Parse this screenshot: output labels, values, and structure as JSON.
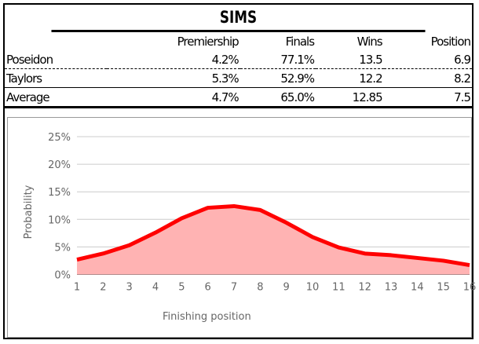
{
  "title": "SIMS",
  "table": {
    "headers": [
      "",
      "Premiership",
      "Finals",
      "Wins",
      "Position"
    ],
    "rows": [
      [
        "Poseidon",
        "4.2%",
        "77.1%",
        "13.5",
        "6.9"
      ],
      [
        "Taylors",
        "5.3%",
        "52.9%",
        "12.2",
        "8.2"
      ],
      [
        "Average",
        "4.7%",
        "65.0%",
        "12.85",
        "7.5"
      ]
    ]
  },
  "chart_data": {
    "type": "area",
    "xlabel": "Finishing position",
    "ylabel": "Probability",
    "x": [
      1,
      2,
      3,
      4,
      5,
      6,
      7,
      8,
      9,
      10,
      11,
      12,
      13,
      14,
      15,
      16
    ],
    "values": [
      2.7,
      3.8,
      5.3,
      7.6,
      10.2,
      12.1,
      12.4,
      11.7,
      9.4,
      6.8,
      4.9,
      3.8,
      3.5,
      3.0,
      2.5,
      1.7
    ],
    "ylim": [
      0,
      25
    ],
    "yticks": [
      "0%",
      "5%",
      "10%",
      "15%",
      "20%",
      "25%"
    ],
    "grid": true,
    "colors": {
      "line": "#ff0000",
      "fill": "#ffb3b3"
    }
  }
}
